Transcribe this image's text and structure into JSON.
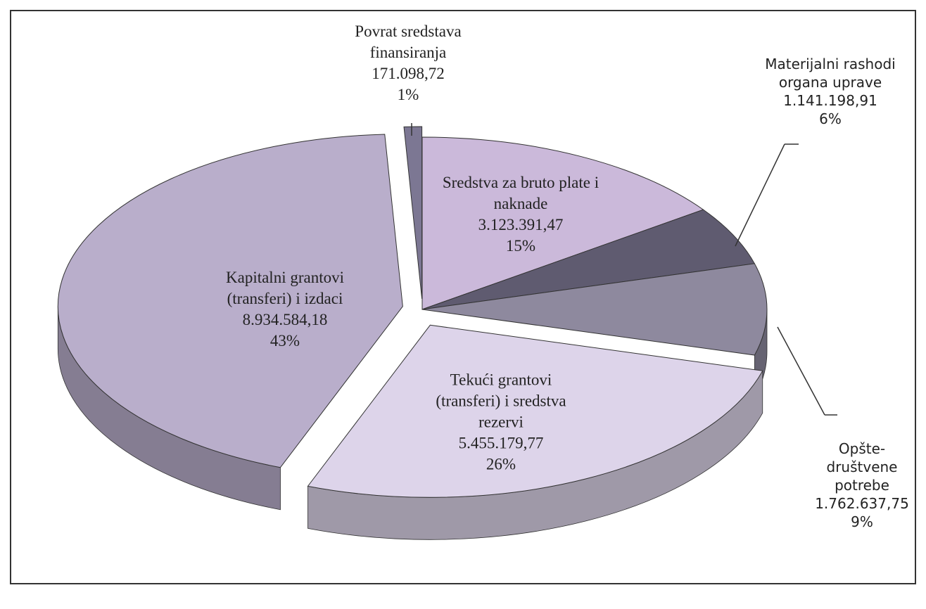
{
  "chart_data": {
    "type": "pie",
    "three_d": true,
    "categories": [
      "Sredstva za bruto plate i naknade",
      "Materijalni rashodi organa uprave",
      "Opšte-društvene potrebe",
      "Tekući grantovi (transferi) i sredstva rezervi",
      "Kapitalni grantovi (transferi) i izdaci",
      "Povrat sredstava finansiranja"
    ],
    "values": [
      3123391.47,
      1141198.91,
      1762637.75,
      5455179.77,
      8934584.18,
      171098.72
    ],
    "value_labels": [
      "3.123.391,47",
      "1.141.198,91",
      "1.762.637,75",
      "5.455.179,77",
      "8.934.584,18",
      "171.098,72"
    ],
    "percent_labels": [
      "15%",
      "6%",
      "9%",
      "26%",
      "43%",
      "1%"
    ],
    "colors": [
      "#cbb9da",
      "#5f5b70",
      "#8e899e",
      "#ddd4ea",
      "#b9aecb",
      "#7c7793"
    ]
  }
}
